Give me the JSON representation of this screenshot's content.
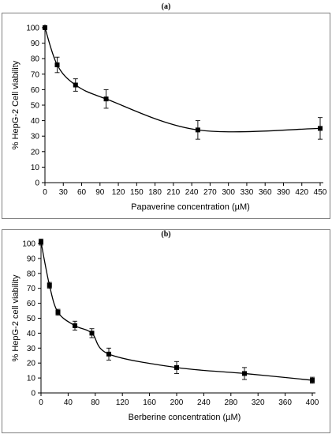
{
  "panels": [
    {
      "label": "(a)"
    },
    {
      "label": "(b)"
    }
  ],
  "chart_data": [
    {
      "type": "line",
      "panel": "(a)",
      "title": "",
      "xlabel": "Papaverine concentration (µM)",
      "ylabel": "% HepG-2 Cell viability",
      "xlim": [
        0,
        450
      ],
      "ylim": [
        0,
        100
      ],
      "xticks": [
        "0",
        "30",
        "60",
        "90",
        "120",
        "150",
        "180",
        "210",
        "240",
        "270",
        "300",
        "330",
        "360",
        "390",
        "420",
        "450"
      ],
      "yticks": [
        "0",
        "10",
        "20",
        "30",
        "40",
        "50",
        "60",
        "70",
        "80",
        "90",
        "100"
      ],
      "grid": false,
      "smooth": true,
      "series": [
        {
          "x": [
            0,
            20,
            50,
            100,
            250,
            450
          ],
          "y": [
            100,
            76,
            63,
            54,
            34,
            35
          ],
          "error": [
            0,
            5,
            4,
            6,
            6,
            7
          ]
        }
      ]
    },
    {
      "type": "line",
      "panel": "(b)",
      "title": "",
      "xlabel": "Berberine concentration (µM)",
      "ylabel": "% HepG-2 cell viability",
      "xlim": [
        0,
        400
      ],
      "ylim": [
        0,
        100
      ],
      "xticks": [
        "0",
        "40",
        "80",
        "120",
        "160",
        "200",
        "240",
        "280",
        "320",
        "360",
        "400"
      ],
      "yticks": [
        "0",
        "10",
        "20",
        "30",
        "40",
        "50",
        "60",
        "70",
        "80",
        "90",
        "100"
      ],
      "grid": false,
      "smooth": true,
      "series": [
        {
          "x": [
            0,
            12.5,
            25,
            50,
            75,
            100,
            200,
            300,
            400
          ],
          "y": [
            101,
            72,
            54,
            45,
            40,
            26,
            17,
            13,
            8.5
          ],
          "error": [
            2,
            2,
            2,
            3,
            3,
            4,
            4,
            4,
            2
          ]
        }
      ]
    }
  ]
}
